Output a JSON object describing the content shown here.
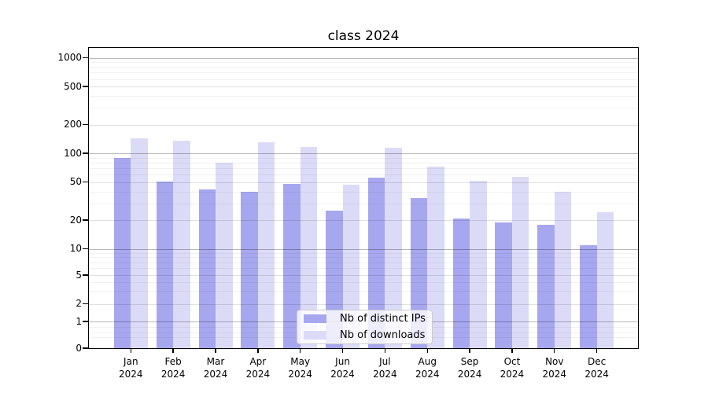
{
  "chart_data": {
    "type": "bar",
    "title": "class 2024",
    "months": [
      "Jan",
      "Feb",
      "Mar",
      "Apr",
      "May",
      "Jun",
      "Jul",
      "Aug",
      "Sep",
      "Oct",
      "Nov",
      "Dec"
    ],
    "year": "2024",
    "series": [
      {
        "name": "Nb of distinct IPs",
        "color": "#a7a7ef",
        "values": [
          90,
          51,
          42,
          40,
          48,
          25,
          56,
          34,
          21,
          19,
          18,
          11
        ]
      },
      {
        "name": "Nb of downloads",
        "color": "#dbdbf8",
        "values": [
          145,
          135,
          80,
          130,
          117,
          47,
          114,
          73,
          52,
          57,
          40,
          24
        ]
      }
    ],
    "y_axis": {
      "scale": "symlog",
      "ticks": [
        1000,
        500,
        200,
        100,
        50,
        20,
        10,
        5,
        2,
        1,
        0
      ],
      "range": [
        0,
        1300
      ]
    },
    "x_axis": {
      "label_lines": 2
    },
    "grid": true,
    "legend_position": "lower-center"
  }
}
